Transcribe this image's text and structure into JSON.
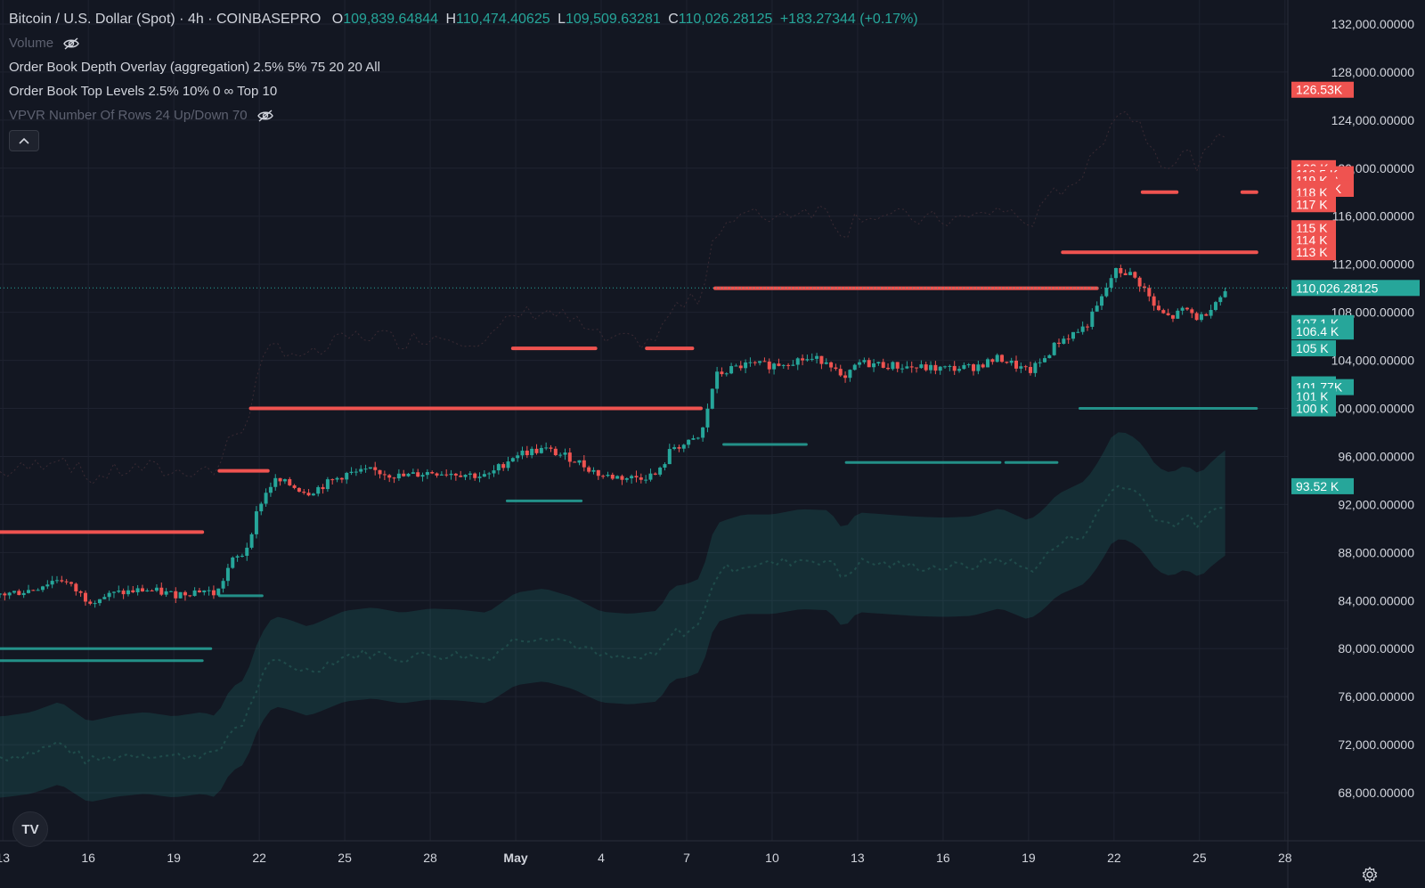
{
  "header": {
    "symbol": "Bitcoin / U.S. Dollar (Spot) · 4h · COINBASEPRO",
    "o_label": "O",
    "o_val": "109,839.64844",
    "h_label": "H",
    "h_val": "110,474.40625",
    "l_label": "L",
    "l_val": "109,509.63281",
    "c_label": "C",
    "c_val": "110,026.28125",
    "change": "+183.27344 (+0.17%)"
  },
  "indicators": [
    {
      "label": "Volume",
      "hidden": true
    },
    {
      "label": "Order Book Depth Overlay (aggregation) 2.5% 5% 75 20 20 All",
      "hidden": false
    },
    {
      "label": "Order Book Top Levels 2.5% 10% 0 ∞ Top 10",
      "hidden": false
    },
    {
      "label": "VPVR Number Of Rows 24 Up/Down 70",
      "hidden": true
    }
  ],
  "icons": {
    "eye_off": "eye-off-icon",
    "collapse": "chevron-up-icon",
    "logo": "tradingview-logo",
    "settings": "gear-icon"
  },
  "logo_text": "TV",
  "colors": {
    "background": "#131722",
    "up": "#26a69a",
    "down": "#ef5350",
    "grid": "#1f2330",
    "text": "#d1d4dc",
    "dim_text": "#5d6170"
  },
  "chart_data": {
    "type": "candlestick",
    "title": "Bitcoin / U.S. Dollar (Spot) · 4h · COINBASEPRO",
    "ylim": [
      64000,
      134000
    ],
    "y_ticks": [
      "132,000.00000",
      "128,000.00000",
      "124,000.00000",
      "120,000.00000",
      "116,000.00000",
      "112,000.00000",
      "108,000.00000",
      "104,000.00000",
      "100,000.00000",
      "96,000.00000",
      "92,000.00000",
      "88,000.00000",
      "84,000.00000",
      "80,000.00000",
      "76,000.00000",
      "72,000.00000",
      "68,000.00000"
    ],
    "y_tick_values": [
      132000,
      128000,
      124000,
      120000,
      116000,
      112000,
      108000,
      104000,
      100000,
      96000,
      92000,
      88000,
      84000,
      80000,
      76000,
      72000,
      68000
    ],
    "x_ticks": [
      "13",
      "16",
      "19",
      "22",
      "25",
      "28",
      "May",
      "4",
      "7",
      "10",
      "13",
      "16",
      "19",
      "22",
      "25",
      "28"
    ],
    "x_tick_days": [
      13,
      16,
      19,
      22,
      25,
      28,
      31,
      34,
      37,
      40,
      43,
      46,
      49,
      52,
      55,
      58
    ],
    "x_range_days": [
      12.9,
      58.1
    ],
    "last_price": "110,026.28125",
    "last_price_value": 110026.28125,
    "price_path": [
      {
        "x": 13,
        "y": 84500
      },
      {
        "x": 14,
        "y": 84900
      },
      {
        "x": 15,
        "y": 85900
      },
      {
        "x": 16,
        "y": 84000
      },
      {
        "x": 17,
        "y": 84600
      },
      {
        "x": 18,
        "y": 84900
      },
      {
        "x": 19,
        "y": 84500
      },
      {
        "x": 20,
        "y": 84900
      },
      {
        "x": 20.5,
        "y": 84500
      },
      {
        "x": 21,
        "y": 87200
      },
      {
        "x": 21.5,
        "y": 88000
      },
      {
        "x": 22,
        "y": 92000
      },
      {
        "x": 22.5,
        "y": 94000
      },
      {
        "x": 23,
        "y": 93700
      },
      {
        "x": 23.7,
        "y": 93000
      },
      {
        "x": 24,
        "y": 93300
      },
      {
        "x": 25,
        "y": 94500
      },
      {
        "x": 26,
        "y": 94800
      },
      {
        "x": 27,
        "y": 94300
      },
      {
        "x": 28,
        "y": 94700
      },
      {
        "x": 29,
        "y": 94600
      },
      {
        "x": 30,
        "y": 94300
      },
      {
        "x": 31,
        "y": 96200
      },
      {
        "x": 32,
        "y": 96600
      },
      {
        "x": 33,
        "y": 95800
      },
      {
        "x": 34,
        "y": 94400
      },
      {
        "x": 35,
        "y": 94200
      },
      {
        "x": 36,
        "y": 94500
      },
      {
        "x": 36.5,
        "y": 96800
      },
      {
        "x": 37,
        "y": 97000
      },
      {
        "x": 37.5,
        "y": 97600
      },
      {
        "x": 38,
        "y": 102700
      },
      {
        "x": 38.5,
        "y": 103200
      },
      {
        "x": 39,
        "y": 103600
      },
      {
        "x": 40,
        "y": 103600
      },
      {
        "x": 41,
        "y": 104100
      },
      {
        "x": 42,
        "y": 104000
      },
      {
        "x": 42.5,
        "y": 102100
      },
      {
        "x": 43,
        "y": 103800
      },
      {
        "x": 44,
        "y": 103600
      },
      {
        "x": 45,
        "y": 103400
      },
      {
        "x": 46,
        "y": 103300
      },
      {
        "x": 47,
        "y": 103400
      },
      {
        "x": 48,
        "y": 104200
      },
      {
        "x": 49,
        "y": 103000
      },
      {
        "x": 49.5,
        "y": 104000
      },
      {
        "x": 50,
        "y": 105500
      },
      {
        "x": 51,
        "y": 106800
      },
      {
        "x": 51.5,
        "y": 108800
      },
      {
        "x": 52,
        "y": 111400
      },
      {
        "x": 52.5,
        "y": 111300
      },
      {
        "x": 53,
        "y": 110200
      },
      {
        "x": 53.5,
        "y": 108100
      },
      {
        "x": 54,
        "y": 107500
      },
      {
        "x": 54.5,
        "y": 108300
      },
      {
        "x": 55,
        "y": 107400
      },
      {
        "x": 55.5,
        "y": 108800
      },
      {
        "x": 56,
        "y": 109900
      }
    ],
    "ask_levels": [
      {
        "x0": 12.9,
        "x1": 20,
        "y": 89700
      },
      {
        "x0": 21.7,
        "x1": 37.5,
        "y": 100000
      },
      {
        "x0": 20.6,
        "x1": 22.3,
        "y": 94800
      },
      {
        "x0": 30.9,
        "x1": 33.8,
        "y": 105000
      },
      {
        "x0": 35.6,
        "x1": 37.2,
        "y": 105000
      },
      {
        "x0": 38.0,
        "x1": 51.4,
        "y": 110000
      },
      {
        "x0": 53.0,
        "x1": 54.2,
        "y": 118000
      },
      {
        "x0": 56.5,
        "x1": 57.0,
        "y": 118000
      },
      {
        "x0": 50.2,
        "x1": 57.0,
        "y": 113000
      }
    ],
    "bid_levels": [
      {
        "x0": 12.9,
        "x1": 20.3,
        "y": 80000
      },
      {
        "x0": 12.9,
        "x1": 20.0,
        "y": 79000
      },
      {
        "x0": 20.6,
        "x1": 22.1,
        "y": 84400
      },
      {
        "x0": 30.7,
        "x1": 33.3,
        "y": 92300
      },
      {
        "x0": 38.3,
        "x1": 41.2,
        "y": 97000
      },
      {
        "x0": 42.6,
        "x1": 48.0,
        "y": 95500
      },
      {
        "x0": 48.2,
        "x1": 50.0,
        "y": 95500
      },
      {
        "x0": 50.8,
        "x1": 57.0,
        "y": 100000
      }
    ],
    "side_labels": {
      "ask": [
        {
          "label": "126.53K",
          "y": 126530
        },
        {
          "label": "120 K",
          "y": 120000
        },
        {
          "label": "119.5 K",
          "y": 119500
        },
        {
          "label": "119 K",
          "y": 119000
        },
        {
          "label": "118.28K",
          "y": 118280
        },
        {
          "label": "118 K",
          "y": 118000
        },
        {
          "label": "117 K",
          "y": 117000
        },
        {
          "label": "115 K",
          "y": 115000
        },
        {
          "label": "114 K",
          "y": 114000
        },
        {
          "label": "113 K",
          "y": 113000
        }
      ],
      "bid": [
        {
          "label": "107.1 K",
          "y": 107100
        },
        {
          "label": "106.4 K",
          "y": 106400
        },
        {
          "label": "105 K",
          "y": 105000
        },
        {
          "label": "102 K",
          "y": 102000
        },
        {
          "label": "101.77K",
          "y": 101770
        },
        {
          "label": "101 K",
          "y": 101000
        },
        {
          "label": "100 K",
          "y": 100000
        },
        {
          "label": "93.52 K",
          "y": 93520
        }
      ]
    }
  }
}
